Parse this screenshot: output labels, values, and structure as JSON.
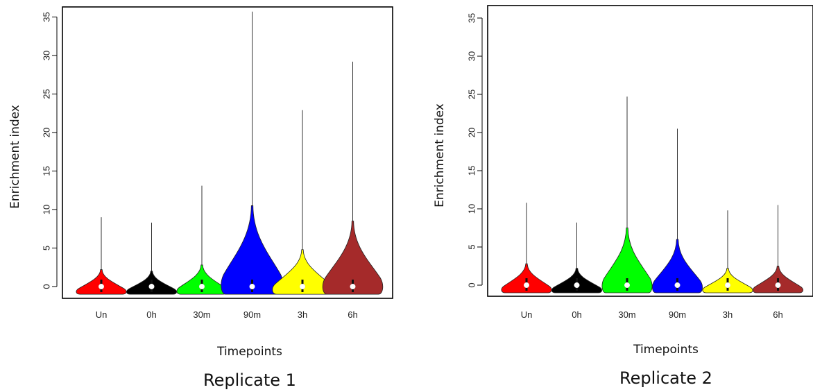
{
  "chart_data": [
    {
      "type": "violin",
      "caption": "Replicate 1",
      "xlabel": "Timepoints",
      "ylabel": "Enrichment index",
      "ylim": [
        -1,
        36
      ],
      "yticks": [
        0,
        5,
        10,
        15,
        20,
        25,
        30,
        35
      ],
      "categories": [
        "Un",
        "0h",
        "30m",
        "90m",
        "3h",
        "6h"
      ],
      "series": [
        {
          "category": "Un",
          "color": "#ff0000",
          "median": 0,
          "min": -1,
          "max": 9.0,
          "shape_width": 0.5,
          "shape_height": 3.2
        },
        {
          "category": "0h",
          "color": "#000000",
          "median": 0,
          "min": -1,
          "max": 8.3,
          "shape_width": 0.5,
          "shape_height": 3.0
        },
        {
          "category": "30m",
          "color": "#00ff00",
          "median": 0,
          "min": -1,
          "max": 13.1,
          "shape_width": 0.5,
          "shape_height": 3.8
        },
        {
          "category": "90m",
          "color": "#0000ff",
          "median": 0,
          "min": -1,
          "max": 35.7,
          "shape_width": 0.62,
          "shape_height": 11.5
        },
        {
          "category": "3h",
          "color": "#ffff00",
          "median": 0,
          "min": -1,
          "max": 22.9,
          "shape_width": 0.6,
          "shape_height": 5.8
        },
        {
          "category": "6h",
          "color": "#a52a2a",
          "median": 0,
          "min": -1,
          "max": 29.2,
          "shape_width": 0.6,
          "shape_height": 9.5
        }
      ]
    },
    {
      "type": "violin",
      "caption": "Replicate 2",
      "xlabel": "Timepoints",
      "ylabel": "Enrichment index",
      "ylim": [
        -1,
        36
      ],
      "yticks": [
        0,
        5,
        10,
        15,
        20,
        25,
        30,
        35
      ],
      "categories": [
        "Un",
        "0h",
        "30m",
        "90m",
        "3h",
        "6h"
      ],
      "series": [
        {
          "category": "Un",
          "color": "#ff0000",
          "median": 0,
          "min": -1,
          "max": 10.8,
          "shape_width": 0.5,
          "shape_height": 3.8
        },
        {
          "category": "0h",
          "color": "#000000",
          "median": 0,
          "min": -1,
          "max": 8.2,
          "shape_width": 0.5,
          "shape_height": 3.2
        },
        {
          "category": "30m",
          "color": "#00ff00",
          "median": 0,
          "min": -1,
          "max": 24.7,
          "shape_width": 0.5,
          "shape_height": 8.5
        },
        {
          "category": "90m",
          "color": "#0000ff",
          "median": 0,
          "min": -1,
          "max": 20.5,
          "shape_width": 0.5,
          "shape_height": 7.0
        },
        {
          "category": "3h",
          "color": "#ffff00",
          "median": 0,
          "min": -1,
          "max": 9.8,
          "shape_width": 0.5,
          "shape_height": 3.2
        },
        {
          "category": "6h",
          "color": "#a52a2a",
          "median": 0,
          "min": -1,
          "max": 10.5,
          "shape_width": 0.5,
          "shape_height": 3.5
        }
      ]
    }
  ]
}
